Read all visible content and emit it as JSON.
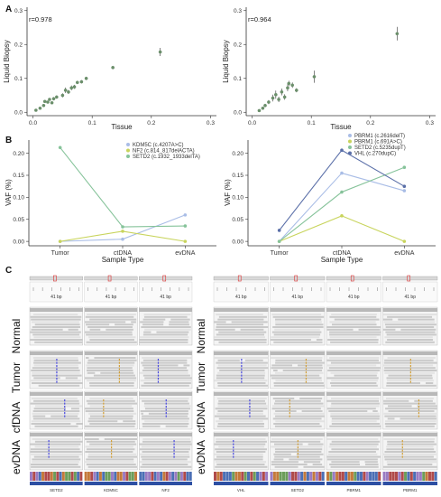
{
  "panel_letters": {
    "a": "A",
    "b": "B",
    "c": "C"
  },
  "chart_data": [
    {
      "type": "scatter",
      "panel": "A-left",
      "annotation": "r=0.978",
      "xlabel": "Tissue",
      "ylabel": "Liquid Biopsy",
      "xlim": [
        -0.01,
        0.31
      ],
      "ylim": [
        -0.01,
        0.31
      ],
      "xticks": [
        0.0,
        0.1,
        0.2,
        0.3
      ],
      "yticks": [
        0.0,
        0.1,
        0.2,
        0.3
      ],
      "xtick_labels": [
        "0.0",
        "0.1",
        "0.2",
        "0.3"
      ],
      "ytick_labels": [
        "0.0",
        "0.1",
        "0.2",
        "0.3"
      ],
      "points": [
        {
          "x": 0.005,
          "y": 0.006,
          "err": 0.003
        },
        {
          "x": 0.012,
          "y": 0.012,
          "err": 0.003
        },
        {
          "x": 0.018,
          "y": 0.02,
          "err": 0.004
        },
        {
          "x": 0.02,
          "y": 0.032,
          "err": 0.004
        },
        {
          "x": 0.025,
          "y": 0.03,
          "err": 0.004
        },
        {
          "x": 0.028,
          "y": 0.038,
          "err": 0.004
        },
        {
          "x": 0.032,
          "y": 0.028,
          "err": 0.004
        },
        {
          "x": 0.035,
          "y": 0.04,
          "err": 0.005
        },
        {
          "x": 0.04,
          "y": 0.045,
          "err": 0.005
        },
        {
          "x": 0.05,
          "y": 0.05,
          "err": 0.006
        },
        {
          "x": 0.055,
          "y": 0.065,
          "err": 0.008
        },
        {
          "x": 0.06,
          "y": 0.06,
          "err": 0.006
        },
        {
          "x": 0.065,
          "y": 0.072,
          "err": 0.007
        },
        {
          "x": 0.07,
          "y": 0.075,
          "err": 0.006
        },
        {
          "x": 0.075,
          "y": 0.088,
          "err": 0.005
        },
        {
          "x": 0.082,
          "y": 0.09,
          "err": 0.005
        },
        {
          "x": 0.09,
          "y": 0.1,
          "err": 0.005
        },
        {
          "x": 0.135,
          "y": 0.132,
          "err": 0.005
        },
        {
          "x": 0.215,
          "y": 0.178,
          "err": 0.012
        }
      ]
    },
    {
      "type": "scatter",
      "panel": "A-right",
      "annotation": "r=0.964",
      "xlabel": "Tissue",
      "ylabel": "Liquid Biopsy",
      "xlim": [
        -0.01,
        0.31
      ],
      "ylim": [
        -0.01,
        0.31
      ],
      "xticks": [
        0.0,
        0.1,
        0.2,
        0.3
      ],
      "yticks": [
        0.0,
        0.1,
        0.2,
        0.3
      ],
      "xtick_labels": [
        "0.0",
        "0.1",
        "0.2",
        "0.3"
      ],
      "ytick_labels": [
        "0.0",
        "0.1",
        "0.2",
        "0.3"
      ],
      "points": [
        {
          "x": 0.012,
          "y": 0.005,
          "err": 0.003
        },
        {
          "x": 0.018,
          "y": 0.012,
          "err": 0.004
        },
        {
          "x": 0.022,
          "y": 0.02,
          "err": 0.005
        },
        {
          "x": 0.028,
          "y": 0.03,
          "err": 0.006
        },
        {
          "x": 0.035,
          "y": 0.042,
          "err": 0.01
        },
        {
          "x": 0.04,
          "y": 0.052,
          "err": 0.012
        },
        {
          "x": 0.045,
          "y": 0.038,
          "err": 0.008
        },
        {
          "x": 0.05,
          "y": 0.06,
          "err": 0.01
        },
        {
          "x": 0.055,
          "y": 0.045,
          "err": 0.008
        },
        {
          "x": 0.06,
          "y": 0.072,
          "err": 0.01
        },
        {
          "x": 0.062,
          "y": 0.085,
          "err": 0.008
        },
        {
          "x": 0.068,
          "y": 0.08,
          "err": 0.008
        },
        {
          "x": 0.075,
          "y": 0.065,
          "err": 0.006
        },
        {
          "x": 0.105,
          "y": 0.105,
          "err": 0.018
        },
        {
          "x": 0.245,
          "y": 0.232,
          "err": 0.02
        }
      ]
    },
    {
      "type": "line",
      "panel": "B-left",
      "categories": [
        "Tumor",
        "ctDNA",
        "evDNA"
      ],
      "xlabel": "Sample Type",
      "ylabel": "VAF (%)",
      "ylim": [
        -0.01,
        0.23
      ],
      "yticks": [
        0.0,
        0.05,
        0.1,
        0.15,
        0.2
      ],
      "ytick_labels": [
        "0.00",
        "0.05",
        "0.10",
        "0.15",
        "0.20"
      ],
      "legend_position": "top-right",
      "series": [
        {
          "name": "KDM5C (c.4207A>C)",
          "color": "#a9bde6",
          "values": [
            0.0,
            0.005,
            0.06
          ]
        },
        {
          "name": "NF2 (c.814_817delACTA)",
          "color": "#c8d45c",
          "values": [
            0.0,
            0.023,
            0.0
          ]
        },
        {
          "name": "SETD2 (c.1932_1933delTA)",
          "color": "#86c39a",
          "values": [
            0.213,
            0.033,
            0.035
          ]
        }
      ]
    },
    {
      "type": "line",
      "panel": "B-right",
      "categories": [
        "Tumor",
        "ctDNA",
        "evDNA"
      ],
      "xlabel": "Sample Type",
      "ylabel": "VAF (%)",
      "ylim": [
        -0.01,
        0.23
      ],
      "yticks": [
        0.0,
        0.05,
        0.1,
        0.15,
        0.2
      ],
      "ytick_labels": [
        "0.00",
        "0.05",
        "0.10",
        "0.15",
        "0.20"
      ],
      "legend_position": "top-right",
      "series": [
        {
          "name": "PBRM1 (c.2616delT)",
          "color": "#a9bde6",
          "values": [
            0.0,
            0.155,
            0.115
          ]
        },
        {
          "name": "PBRM1 (c.691A>C)",
          "color": "#c8d45c",
          "values": [
            0.0,
            0.058,
            0.0
          ]
        },
        {
          "name": "SETD2 (c.5235dupT)",
          "color": "#86c39a",
          "values": [
            0.0,
            0.112,
            0.168
          ]
        },
        {
          "name": "VHL (c.270dupC)",
          "color": "#5a6fa8",
          "values": [
            0.025,
            0.207,
            0.125
          ]
        }
      ]
    }
  ],
  "igv": {
    "row_labels": [
      "Normal",
      "Tumor",
      "cfDNA",
      "evDNA"
    ],
    "scale_label": "41 bp",
    "left_genes": [
      "SETD2",
      "KDM5C",
      "NF2"
    ],
    "right_genes": [
      "VHL",
      "SETD2",
      "PBRM1",
      "PBRM1"
    ]
  },
  "colors": {
    "point": "#6b8f6b",
    "read": "#c9c9c9",
    "read_light": "#e2e2e2",
    "mismatch": "#4a4adf",
    "mismatch_alt": "#d2a03a"
  }
}
